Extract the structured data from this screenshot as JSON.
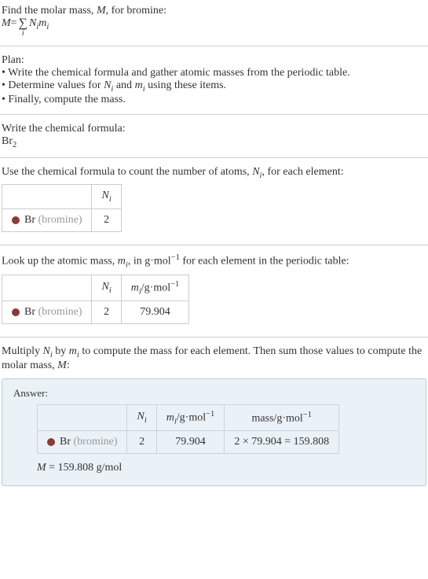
{
  "intro": {
    "line1_a": "Find the molar mass, ",
    "line1_b": "M",
    "line1_c": ", for bromine:",
    "eq_lhs": "M",
    "eq_eq": " = ",
    "sigma_sub": "i",
    "eq_rhs_a": "N",
    "eq_rhs_a_sub": "i",
    "eq_rhs_b": "m",
    "eq_rhs_b_sub": "i"
  },
  "plan": {
    "title": "Plan:",
    "b1": "• Write the chemical formula and gather atomic masses from the periodic table.",
    "b2_a": "• Determine values for ",
    "b2_n": "N",
    "b2_ni": "i",
    "b2_b": " and ",
    "b2_m": "m",
    "b2_mi": "i",
    "b2_c": " using these items.",
    "b3": "• Finally, compute the mass."
  },
  "step1": {
    "line": "Write the chemical formula:",
    "formula_a": "Br",
    "formula_sub": "2"
  },
  "step2": {
    "text_a": "Use the chemical formula to count the number of atoms, ",
    "text_n": "N",
    "text_ni": "i",
    "text_b": ", for each element:",
    "header_n": "N",
    "header_ni": "i",
    "elem": "Br ",
    "elem_paren": "(bromine)",
    "val": "2"
  },
  "step3": {
    "text_a": "Look up the atomic mass, ",
    "text_m": "m",
    "text_mi": "i",
    "text_b": ", in g·mol",
    "text_exp": "−1",
    "text_c": " for each element in the periodic table:",
    "h_n": "N",
    "h_ni": "i",
    "h_m": "m",
    "h_mi": "i",
    "h_unit_a": "/g·mol",
    "h_unit_exp": "−1",
    "elem": "Br ",
    "elem_paren": "(bromine)",
    "nval": "2",
    "mval": "79.904"
  },
  "step4": {
    "text_a": "Multiply ",
    "n": "N",
    "ni": "i",
    "text_b": " by ",
    "m": "m",
    "mi": "i",
    "text_c": " to compute the mass for each element. Then sum those values to compute the molar mass, ",
    "Mm": "M",
    "text_d": ":"
  },
  "answer": {
    "label": "Answer:",
    "h_n": "N",
    "h_ni": "i",
    "h_m": "m",
    "h_mi": "i",
    "h_unit_a": "/g·mol",
    "h_unit_exp": "−1",
    "h_mass_a": "mass/g·mol",
    "h_mass_exp": "−1",
    "elem": "Br ",
    "elem_paren": "(bromine)",
    "nval": "2",
    "mval": "79.904",
    "massval": "2 × 79.904 = 159.808",
    "result_a": "M",
    "result_b": " = 159.808 g/mol"
  },
  "colors": {
    "dot": "#8b3a3a"
  }
}
